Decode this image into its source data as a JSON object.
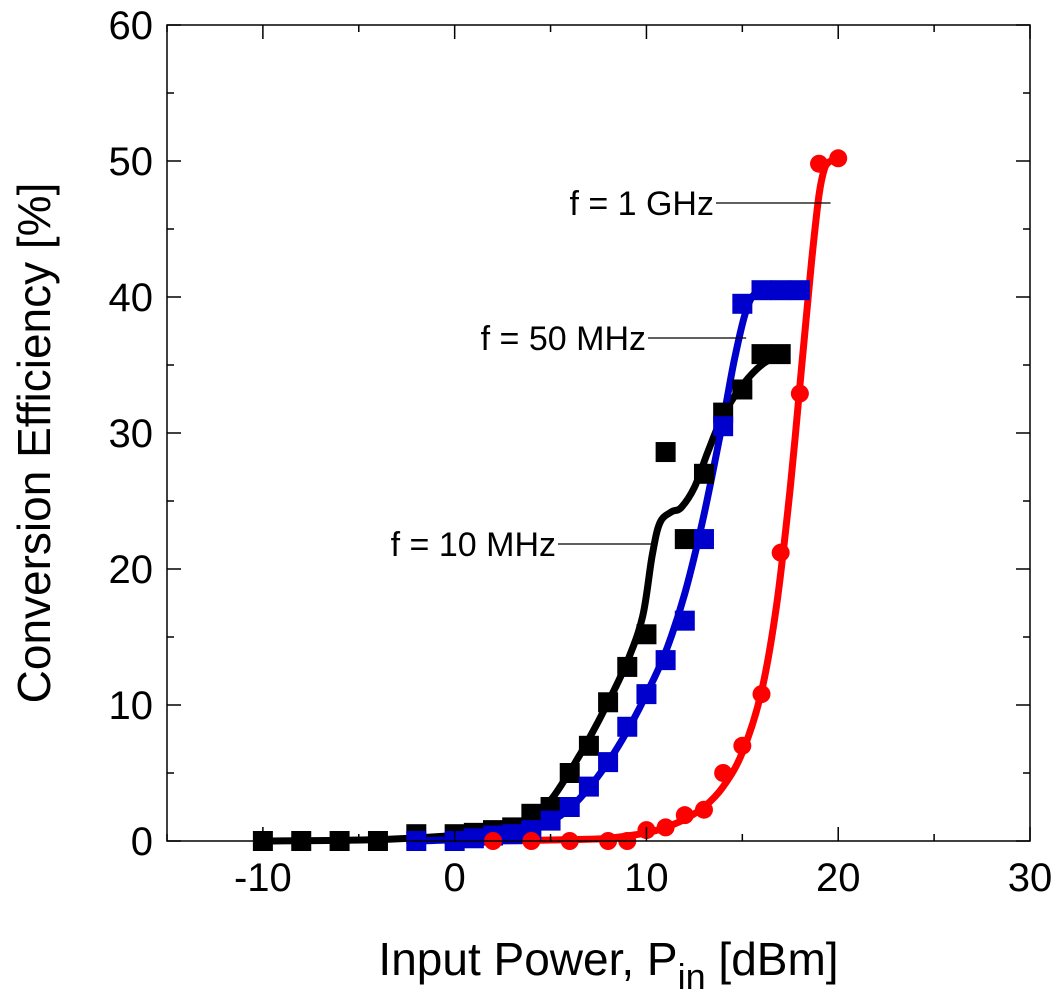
{
  "chart_data": {
    "type": "scatter",
    "title": "",
    "xlabel": {
      "main": "Input Power, P",
      "sub": "in",
      "unit": " [dBm]"
    },
    "ylabel": "Conversion Efficiency [%]",
    "xlim": [
      -15,
      30
    ],
    "ylim": [
      0,
      60
    ],
    "x_ticks": [
      -10,
      0,
      10,
      20,
      30
    ],
    "y_ticks": [
      0,
      10,
      20,
      30,
      40,
      50,
      60
    ],
    "x_tick_labels": [
      "-10",
      "0",
      "10",
      "20",
      "30"
    ],
    "y_tick_labels": [
      "0",
      "10",
      "20",
      "30",
      "40",
      "50",
      "60"
    ],
    "grid": false,
    "series": [
      {
        "name": "f = 10 MHz",
        "color": "#000000",
        "marker": "square",
        "points": [
          [
            -10,
            0
          ],
          [
            -8,
            0
          ],
          [
            -6,
            0
          ],
          [
            -4,
            0
          ],
          [
            -2,
            0.5
          ],
          [
            0,
            0.5
          ],
          [
            1,
            0.6
          ],
          [
            2,
            0.8
          ],
          [
            3,
            1
          ],
          [
            4,
            2
          ],
          [
            5,
            2.5
          ],
          [
            6,
            5
          ],
          [
            7,
            7
          ],
          [
            8,
            10.2
          ],
          [
            9,
            12.8
          ],
          [
            10,
            15.2
          ],
          [
            11,
            28.6
          ],
          [
            12,
            22.2
          ],
          [
            13,
            27
          ],
          [
            14,
            31.5
          ],
          [
            15,
            33.2
          ],
          [
            16,
            35.8
          ],
          [
            17,
            35.8
          ]
        ],
        "fit": [
          [
            -10,
            0
          ],
          [
            -4,
            0.1
          ],
          [
            0,
            0.4
          ],
          [
            2,
            0.7
          ],
          [
            3,
            1.1
          ],
          [
            4,
            1.9
          ],
          [
            5,
            3.0
          ],
          [
            6,
            5.1
          ],
          [
            7,
            7.5
          ],
          [
            8,
            10.2
          ],
          [
            9,
            13.2
          ],
          [
            9.8,
            16.5
          ],
          [
            10.3,
            21
          ],
          [
            10.7,
            23.4
          ],
          [
            11.3,
            24.2
          ],
          [
            11.8,
            24.5
          ],
          [
            12.5,
            26
          ],
          [
            13.2,
            28.6
          ],
          [
            14,
            31.3
          ],
          [
            15,
            33.5
          ],
          [
            16,
            35
          ],
          [
            17,
            35.8
          ]
        ]
      },
      {
        "name": "f = 50 MHz",
        "color": "#0000cc",
        "marker": "square",
        "points": [
          [
            -2,
            0
          ],
          [
            0,
            0
          ],
          [
            1,
            0.2
          ],
          [
            2,
            0.4
          ],
          [
            3,
            0.5
          ],
          [
            4,
            0.8
          ],
          [
            5,
            1.5
          ],
          [
            6,
            2.5
          ],
          [
            7,
            4.0
          ],
          [
            8,
            5.8
          ],
          [
            9,
            8.4
          ],
          [
            10,
            10.8
          ],
          [
            11,
            13.3
          ],
          [
            12,
            16.2
          ],
          [
            13,
            22.2
          ],
          [
            14,
            30.5
          ],
          [
            15,
            39.5
          ],
          [
            16,
            40.5
          ],
          [
            17,
            40.5
          ],
          [
            18,
            40.5
          ]
        ],
        "fit": [
          [
            -2,
            0
          ],
          [
            0,
            0.1
          ],
          [
            2,
            0.3
          ],
          [
            4,
            0.8
          ],
          [
            5,
            1.4
          ],
          [
            6,
            2.4
          ],
          [
            7,
            3.9
          ],
          [
            8,
            5.8
          ],
          [
            9,
            8.1
          ],
          [
            10,
            10.8
          ],
          [
            11,
            13.9
          ],
          [
            12,
            18.2
          ],
          [
            13,
            24.0
          ],
          [
            14,
            31.0
          ],
          [
            14.6,
            35.5
          ],
          [
            15.2,
            39.0
          ],
          [
            15.8,
            40.4
          ],
          [
            17,
            40.5
          ],
          [
            18,
            40.5
          ]
        ]
      },
      {
        "name": "f = 1 GHz",
        "color": "#ff0000",
        "marker": "circle",
        "points": [
          [
            2,
            0
          ],
          [
            4,
            0
          ],
          [
            6,
            0
          ],
          [
            8,
            0
          ],
          [
            9,
            0
          ],
          [
            10,
            0.8
          ],
          [
            11,
            1.0
          ],
          [
            12,
            1.9
          ],
          [
            13,
            2.3
          ],
          [
            14,
            5.0
          ],
          [
            15,
            7.0
          ],
          [
            16,
            10.8
          ],
          [
            17,
            21.2
          ],
          [
            18,
            32.9
          ],
          [
            19,
            49.8
          ],
          [
            20,
            50.2
          ]
        ],
        "fit": [
          [
            2,
            0
          ],
          [
            6,
            0.1
          ],
          [
            8,
            0.2
          ],
          [
            10,
            0.6
          ],
          [
            11,
            1.0
          ],
          [
            12,
            1.6
          ],
          [
            13,
            2.5
          ],
          [
            14,
            4.0
          ],
          [
            15,
            6.5
          ],
          [
            16,
            11.0
          ],
          [
            16.8,
            17.5
          ],
          [
            17.5,
            26.0
          ],
          [
            18.1,
            35.0
          ],
          [
            18.6,
            42.5
          ],
          [
            19,
            47.5
          ],
          [
            19.3,
            49.5
          ],
          [
            19.6,
            50.0
          ]
        ]
      }
    ],
    "annotations": [
      {
        "text": "f = 1 GHz",
        "target": [
          19.6,
          47
        ]
      },
      {
        "text": "f = 50 MHz",
        "target": [
          15.2,
          37.5
        ]
      },
      {
        "text": "f = 10 MHz",
        "target": [
          10.5,
          20.5
        ]
      }
    ]
  }
}
